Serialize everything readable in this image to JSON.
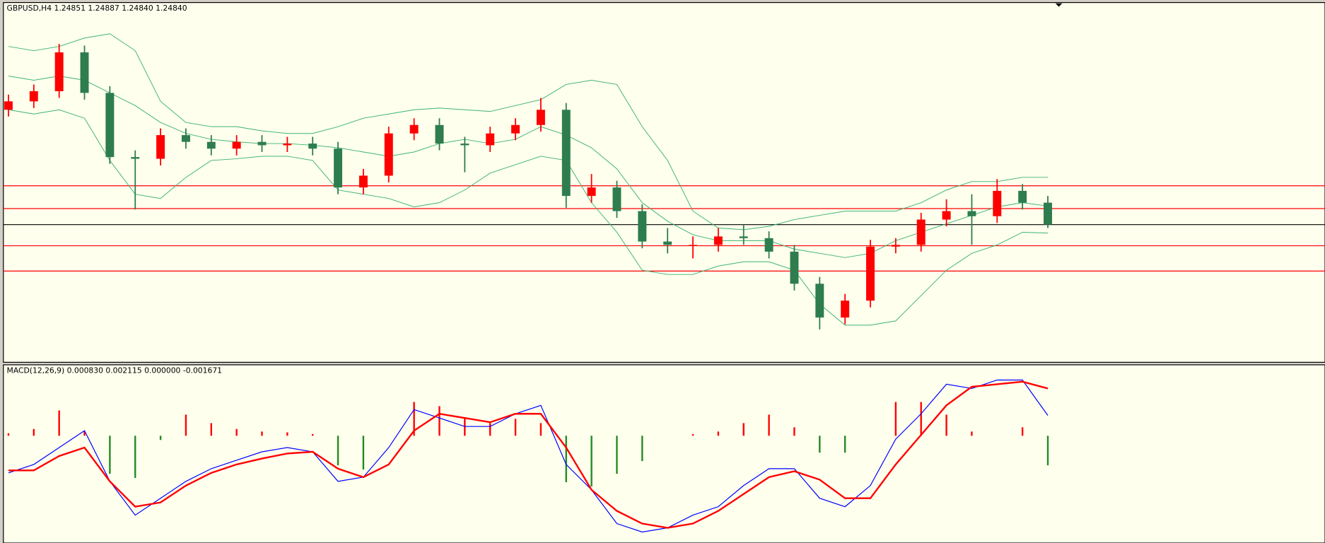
{
  "chart_data": [
    {
      "type": "candlestick",
      "title": "GBPUSD,H4 1.24851 1.24887 1.24840 1.24840",
      "up_color": "#ff0000",
      "down_color": "#2e7d4e",
      "open": [
        1.2552,
        1.2557,
        1.2563,
        1.2586,
        1.2562,
        1.2524,
        1.2523,
        1.2537,
        1.2533,
        1.2529,
        1.2533,
        1.2531,
        1.2532,
        1.2529,
        1.2506,
        1.2513,
        1.2538,
        1.2543,
        1.2532,
        1.2531,
        1.2538,
        1.2543,
        1.2552,
        1.2501,
        1.2506,
        1.2492,
        1.2474,
        1.2472,
        1.2472,
        1.2477,
        1.2476,
        1.2468,
        1.2449,
        1.2429,
        1.2439,
        1.2471,
        1.2472,
        1.2487,
        1.2492,
        1.2489,
        1.2504,
        1.2497
      ],
      "high": [
        1.2561,
        1.2567,
        1.2591,
        1.259,
        1.2566,
        1.2528,
        1.2541,
        1.2541,
        1.2537,
        1.2537,
        1.2537,
        1.2536,
        1.2536,
        1.2533,
        1.2517,
        1.2542,
        1.2547,
        1.2547,
        1.2536,
        1.2542,
        1.2547,
        1.2559,
        1.2556,
        1.2514,
        1.251,
        1.2496,
        1.2482,
        1.2477,
        1.2482,
        1.2484,
        1.248,
        1.2472,
        1.2453,
        1.2443,
        1.2475,
        1.2476,
        1.2491,
        1.2499,
        1.2502,
        1.2511,
        1.2508,
        1.2501
      ],
      "low": [
        1.2548,
        1.2553,
        1.2559,
        1.2558,
        1.252,
        1.2493,
        1.2519,
        1.2529,
        1.2525,
        1.2525,
        1.2527,
        1.2527,
        1.2525,
        1.2502,
        1.2502,
        1.2509,
        1.2534,
        1.2528,
        1.2515,
        1.2527,
        1.2534,
        1.2539,
        1.2494,
        1.2497,
        1.2488,
        1.247,
        1.2467,
        1.2464,
        1.2468,
        1.2472,
        1.2464,
        1.2445,
        1.2422,
        1.2425,
        1.2435,
        1.2467,
        1.2468,
        1.2483,
        1.2472,
        1.2485,
        1.2493,
        1.2482
      ],
      "close": [
        1.2557,
        1.2563,
        1.2586,
        1.2562,
        1.2524,
        1.2523,
        1.2537,
        1.2533,
        1.2529,
        1.2533,
        1.2531,
        1.2532,
        1.2529,
        1.2506,
        1.2513,
        1.2538,
        1.2543,
        1.2532,
        1.2531,
        1.2538,
        1.2543,
        1.2552,
        1.2501,
        1.2506,
        1.2492,
        1.2474,
        1.2472,
        1.2472,
        1.2477,
        1.2476,
        1.2468,
        1.2449,
        1.2429,
        1.2439,
        1.2471,
        1.2472,
        1.2487,
        1.2492,
        1.2489,
        1.2504,
        1.2497,
        1.2484
      ],
      "bands": [
        {
          "color": "#3cb371",
          "values": [
            1.25895,
            1.2587,
            1.25895,
            1.25945,
            1.2597,
            1.2587,
            1.2557,
            1.25445,
            1.2542,
            1.2542,
            1.25395,
            1.2538,
            1.2538,
            1.2542,
            1.2547,
            1.25495,
            1.2552,
            1.2553,
            1.2552,
            1.2551,
            1.25545,
            1.2558,
            1.2567,
            1.25695,
            1.2567,
            1.2542,
            1.2522,
            1.2492,
            1.2482,
            1.2481,
            1.2483,
            1.2487,
            1.24895,
            1.2492,
            1.2492,
            1.2492,
            1.2497,
            1.25045,
            1.25095,
            1.25095,
            1.2512,
            1.2512
          ]
        },
        {
          "color": "#3cb371",
          "values": [
            1.2572,
            1.25695,
            1.2572,
            1.25695,
            1.2562,
            1.25545,
            1.25445,
            1.2538,
            1.25345,
            1.2533,
            1.2532,
            1.2532,
            1.2531,
            1.25295,
            1.2527,
            1.25245,
            1.2527,
            1.2532,
            1.25345,
            1.2532,
            1.25345,
            1.2542,
            1.2537,
            1.25295,
            1.2517,
            1.2497,
            1.2486,
            1.2478,
            1.24745,
            1.24745,
            1.24745,
            1.24695,
            1.2467,
            1.24645,
            1.2467,
            1.24745,
            1.24795,
            1.24845,
            1.24895,
            1.24945,
            1.2497,
            1.2495
          ]
        },
        {
          "color": "#3cb371",
          "values": [
            1.2552,
            1.25495,
            1.2552,
            1.2547,
            1.2522,
            1.2502,
            1.24995,
            1.2512,
            1.2522,
            1.2523,
            1.25245,
            1.25245,
            1.2522,
            1.25045,
            1.2502,
            1.24995,
            1.24945,
            1.2497,
            1.25045,
            1.25145,
            1.25195,
            1.25245,
            1.2522,
            1.2497,
            1.24795,
            1.2457,
            1.24545,
            1.24545,
            1.24595,
            1.2462,
            1.2462,
            1.2457,
            1.2437,
            1.24245,
            1.24245,
            1.2427,
            1.2442,
            1.2457,
            1.2467,
            1.2472,
            1.24795,
            1.2479
          ]
        }
      ],
      "hlines": [
        {
          "value": 1.2507,
          "color": "#ff0000"
        },
        {
          "value": 1.24935,
          "color": "#ff0000"
        },
        {
          "value": 1.2484,
          "color": "#000000"
        },
        {
          "value": 1.24715,
          "color": "#ff0000"
        },
        {
          "value": 1.24565,
          "color": "#ff0000"
        }
      ],
      "ylim": [
        1.2403,
        1.2615
      ]
    },
    {
      "type": "macd",
      "title": "MACD(12,26,9) 0.000830 0.002115 0.000000 -0.001671",
      "histogram": {
        "up_color": "#ff0000",
        "down_color": "#228b22",
        "values": [
          0.00012,
          0.00032,
          0.0012,
          0.0002,
          -0.0018,
          -0.002,
          -0.0002,
          0.001,
          0.0006,
          0.00032,
          0.0002,
          0.00016,
          8e-05,
          -0.0014,
          -0.0016,
          0,
          0.0016,
          0.0014,
          0.0008,
          0.0006,
          0.0008,
          0.0006,
          -0.0022,
          -0.0024,
          -0.0018,
          -0.0012,
          0,
          8e-05,
          0.0002,
          0.0006,
          0.001,
          0.0004,
          -0.0008,
          -0.0008,
          0,
          0.0016,
          0.0016,
          0.001,
          0.0002,
          0,
          0.0004,
          -0.0014
        ]
      },
      "series": [
        {
          "color": "#0000ff",
          "values": [
            -0.00176,
            -0.00136,
            -0.00056,
            0.00024,
            -0.00216,
            -0.00376,
            -0.00296,
            -0.00216,
            -0.00156,
            -0.00116,
            -0.00076,
            -0.00056,
            -0.00076,
            -0.00216,
            -0.00196,
            -0.00056,
            0.00124,
            0.00084,
            0.00044,
            0.00044,
            0.00104,
            0.00144,
            -0.00136,
            -0.00256,
            -0.00416,
            -0.00456,
            -0.00436,
            -0.00376,
            -0.00336,
            -0.00236,
            -0.00156,
            -0.00156,
            -0.00296,
            -0.00336,
            -0.00236,
            -0.00016,
            0.00104,
            0.00244,
            0.00224,
            0.00264,
            0.00264,
            0.00096
          ]
        },
        {
          "color": "#ff0000",
          "values": [
            -0.00164,
            -0.00164,
            -0.00096,
            -0.00056,
            -0.00216,
            -0.00336,
            -0.00316,
            -0.00236,
            -0.00176,
            -0.00136,
            -0.00108,
            -0.00084,
            -0.00076,
            -0.00156,
            -0.00196,
            -0.00136,
            0.00024,
            0.00104,
            0.00084,
            0.00064,
            0.00104,
            0.00104,
            -0.00056,
            -0.00256,
            -0.00356,
            -0.00416,
            -0.00436,
            -0.00416,
            -0.00356,
            -0.00276,
            -0.00196,
            -0.00168,
            -0.00208,
            -0.00296,
            -0.00296,
            -0.00136,
            4e-05,
            0.00144,
            0.00232,
            0.00244,
            0.00256,
            0.00224
          ]
        }
      ],
      "ylim": [
        -0.00508,
        0.00336
      ]
    }
  ]
}
